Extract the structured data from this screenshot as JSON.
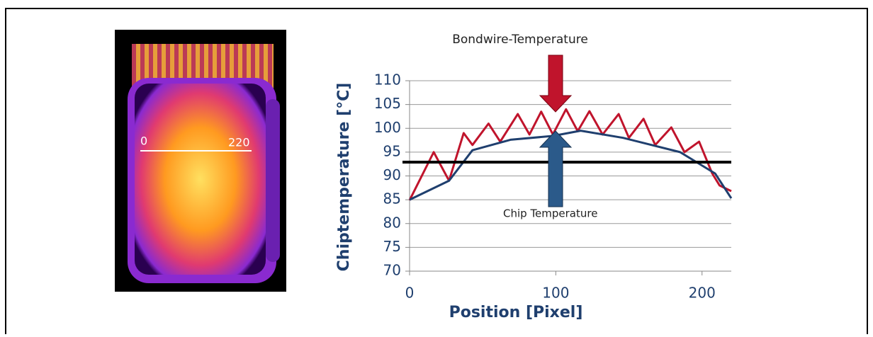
{
  "chart_data": {
    "type": "line",
    "xlabel": "Position [Pixel]",
    "ylabel": "Chiptemperature [°C]",
    "xlim": [
      0,
      220
    ],
    "xticks": [
      0,
      100,
      200
    ],
    "ylim": [
      70,
      110
    ],
    "yticks": [
      70,
      75,
      80,
      85,
      90,
      95,
      100,
      105,
      110
    ],
    "grid": true,
    "hline": 92.9,
    "annotations": [
      "Bondwire-Temperature",
      "Chip Temperature"
    ],
    "series": [
      {
        "color": "#c0142c",
        "x": [
          0,
          16.5,
          27,
          37,
          43,
          54,
          62,
          74,
          82,
          90,
          98,
          107,
          115,
          123,
          132,
          143,
          150,
          160,
          168,
          179,
          188,
          198,
          207,
          212,
          220
        ],
        "values": [
          84.9,
          95,
          89,
          99,
          96.5,
          101,
          97.2,
          103,
          98.7,
          103.5,
          98.7,
          104,
          99.4,
          103.6,
          98.7,
          103,
          98,
          102,
          96.5,
          100.2,
          95,
          97.2,
          90.5,
          88,
          86.8
        ]
      },
      {
        "color": "#1f3f6e",
        "x": [
          0,
          27,
          43,
          69,
          98,
          117,
          146,
          185,
          209,
          220
        ],
        "values": [
          85,
          89,
          95.4,
          97.6,
          98.4,
          99.5,
          98,
          95,
          90.5,
          85.3
        ]
      }
    ]
  },
  "image_labels": [
    "0",
    "220"
  ]
}
